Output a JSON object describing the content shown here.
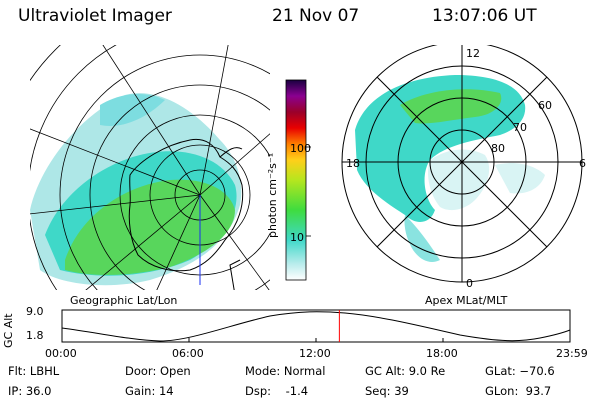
{
  "header": {
    "instrument": "Ultraviolet Imager",
    "date": "21 Nov 07",
    "time": "13:07:06 UT"
  },
  "left_panel": {
    "label": "Geographic Lat/Lon"
  },
  "right_panel": {
    "label": "Apex MLat/MLT",
    "mlt_labels": {
      "top": "12",
      "left": "18",
      "right": "6",
      "bottom": "0"
    },
    "lat_labels": [
      "60",
      "70",
      "80"
    ]
  },
  "colorbar": {
    "label": "photon cm⁻²s⁻¹",
    "ticks": [
      "100",
      "10"
    ]
  },
  "altitude_track": {
    "axis_title": "GC Alt",
    "y_max": "9.0",
    "y_min": "1.8",
    "x_ticks": [
      "00:00",
      "06:00",
      "12:00",
      "18:00",
      "23:59"
    ],
    "current_time_fraction": 0.546
  },
  "info": {
    "filter": "Flt: LBHL",
    "ip": "IP: 36.0",
    "door": "Door: Open",
    "gain": "Gain: 14",
    "mode": "Mode: Normal",
    "dsp": "Dsp:    -1.4",
    "gc_alt": "GC Alt: 9.0 Re",
    "seq": "Seq: 39",
    "glat": "GLat: −70.6",
    "glon": "GLon:  93.7"
  },
  "colors": {
    "emission_low": "#aee7e7",
    "emission_mid": "#3fd8c8",
    "emission_high": "#58d65c",
    "time_marker": "#ff0000"
  }
}
